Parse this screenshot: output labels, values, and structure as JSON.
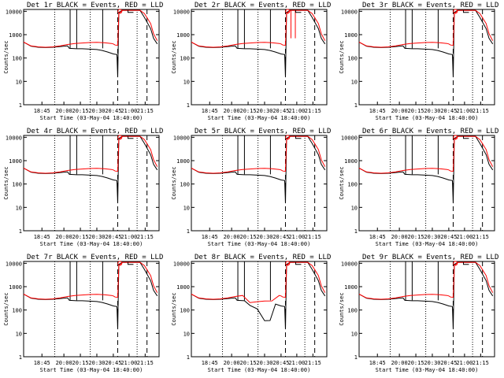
{
  "colors": {
    "events": "#000000",
    "lld": "#ff0000",
    "background": "#ffffff",
    "frame": "#000000"
  },
  "chart_data": [
    {
      "title": "Det 1r BLACK = Events, RED = LLD",
      "variant": "normal"
    },
    {
      "title": "Det 2r BLACK = Events, RED = LLD",
      "variant": "spikes"
    },
    {
      "title": "Det 3r BLACK = Events, RED = LLD",
      "variant": "normal"
    },
    {
      "title": "Det 4r BLACK = Events, RED = LLD",
      "variant": "normal"
    },
    {
      "title": "Det 5r BLACK = Events, RED = LLD",
      "variant": "normal"
    },
    {
      "title": "Det 6r BLACK = Events, RED = LLD",
      "variant": "normal"
    },
    {
      "title": "Det 7r BLACK = Events, RED = LLD",
      "variant": "normal"
    },
    {
      "title": "Det 8r BLACK = Events, RED = LLD",
      "variant": "noisy"
    },
    {
      "title": "Det 9r BLACK = Events, RED = LLD",
      "variant": "normal"
    }
  ],
  "shared": {
    "type": "line",
    "xlabel": "Start Time (03-May-04 18:40:00)",
    "ylabel": "Counts/sec",
    "y_scale": "log",
    "ylim": [
      1,
      12000
    ],
    "xlim_minutes_after_start": [
      0,
      37
    ],
    "x_ticks": [
      {
        "label": "18:45",
        "min": 5
      },
      {
        "label": "20:00",
        "min": 11
      },
      {
        "label": "20:15",
        "min": 15.5
      },
      {
        "label": "20:30",
        "min": 20
      },
      {
        "label": "20:45",
        "min": 24.5
      },
      {
        "label": "21:00",
        "min": 28.8
      },
      {
        "label": "21:15",
        "min": 33.2
      }
    ],
    "y_ticks": [
      {
        "label": "1",
        "value": 1
      },
      {
        "label": "10",
        "value": 10
      },
      {
        "label": "100",
        "value": 100
      },
      {
        "label": "1000",
        "value": 1000
      },
      {
        "label": "10000",
        "value": 10000
      }
    ],
    "dotted_markers_min": [
      8.5,
      18.2,
      31
    ],
    "dashed_markers_min": [
      25.7,
      33.7
    ],
    "solid_markers_min": [
      12.7,
      14.5,
      21.6
    ],
    "series": [
      {
        "name": "Events",
        "color": "#000000",
        "x": [
          0,
          2,
          4,
          6,
          8,
          10,
          12,
          12.5,
          14.5,
          16,
          18,
          20,
          21.5,
          23,
          24.5,
          25.5,
          25.7,
          26,
          27,
          28.8,
          30,
          31.8,
          33,
          34.7,
          35.5,
          36.5
        ],
        "y": [
          480,
          320,
          290,
          280,
          290,
          310,
          330,
          260,
          250,
          250,
          240,
          230,
          210,
          180,
          150,
          140,
          15,
          9000,
          11000,
          11000,
          11000,
          11000,
          5500,
          1800,
          700,
          400
        ]
      },
      {
        "name": "LLD",
        "color": "#ff0000",
        "x": [
          0,
          2,
          4,
          6,
          8,
          10,
          12,
          14,
          16,
          18,
          20,
          22,
          24,
          24.5,
          25,
          25.7,
          26,
          27,
          28.8,
          30,
          31.8,
          33,
          34.7,
          35.5,
          36.5
        ],
        "y": [
          480,
          330,
          300,
          290,
          300,
          330,
          380,
          420,
          440,
          460,
          470,
          450,
          420,
          400,
          360,
          350,
          8000,
          11000,
          11000,
          11000,
          11000,
          8000,
          3000,
          1100,
          550
        ]
      }
    ]
  }
}
